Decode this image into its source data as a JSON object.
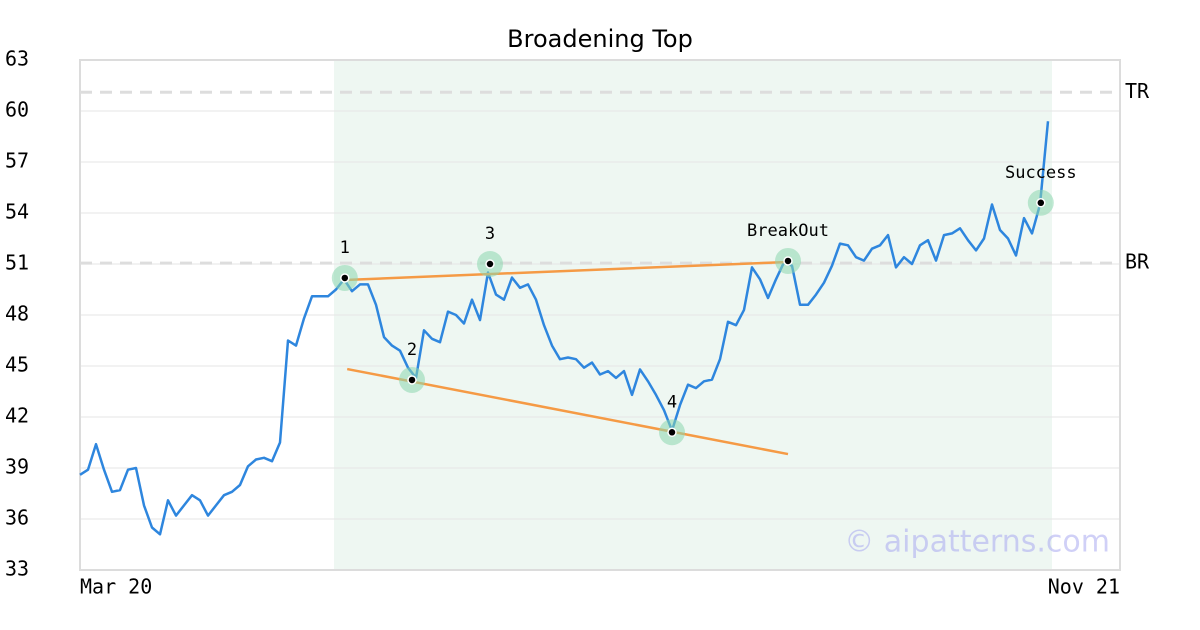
{
  "chart_data": {
    "type": "line",
    "title": "Broadening Top",
    "values": [
      38.6,
      38.9,
      40.4,
      38.9,
      37.6,
      37.7,
      38.9,
      39.0,
      36.8,
      35.5,
      35.1,
      37.1,
      36.2,
      36.8,
      37.4,
      37.1,
      36.2,
      36.8,
      37.4,
      37.6,
      38.0,
      39.1,
      39.5,
      39.6,
      39.4,
      40.5,
      46.5,
      46.2,
      47.8,
      49.1,
      49.1,
      49.1,
      49.5,
      50.1,
      49.4,
      49.8,
      49.8,
      48.6,
      46.7,
      46.2,
      45.9,
      44.9,
      44.3,
      47.1,
      46.6,
      46.4,
      48.2,
      48.0,
      47.5,
      48.9,
      47.7,
      50.5,
      49.2,
      48.9,
      50.2,
      49.6,
      49.8,
      48.9,
      47.4,
      46.2,
      45.4,
      45.5,
      45.4,
      44.9,
      45.2,
      44.5,
      44.7,
      44.3,
      44.7,
      43.3,
      44.8,
      44.1,
      43.3,
      42.4,
      41.2,
      42.7,
      43.9,
      43.7,
      44.1,
      44.2,
      45.4,
      47.6,
      47.4,
      48.3,
      50.8,
      50.1,
      49.0,
      50.1,
      51.1,
      50.9,
      48.6,
      48.6,
      49.2,
      49.9,
      50.9,
      52.2,
      52.1,
      51.4,
      51.2,
      51.9,
      52.1,
      52.7,
      50.8,
      51.4,
      51.0,
      52.1,
      52.4,
      51.2,
      52.7,
      52.8,
      53.1,
      52.4,
      51.8,
      52.5,
      54.5,
      53.0,
      52.5,
      51.5,
      53.7,
      52.8,
      54.5,
      59.4
    ],
    "color": "#2e86de",
    "xlim": [
      0,
      130
    ],
    "xticks": [
      {
        "value": 0,
        "label": "Mar 20"
      },
      {
        "value": 130,
        "label": "Nov 21"
      }
    ],
    "ylim": [
      33,
      63
    ],
    "yticks": [
      33,
      36,
      39,
      42,
      45,
      48,
      51,
      54,
      57,
      60,
      63
    ],
    "grid": true,
    "shade_x": [
      31.75,
      121.5
    ],
    "shade_color": "#eef7f2",
    "reference_lines": [
      {
        "label": "TR",
        "value": 61.1
      },
      {
        "label": "BR",
        "value": 51.05
      }
    ],
    "trend_lines": [
      {
        "x": [
          33.1,
          88.5
        ],
        "y": [
          50.06,
          51.12
        ],
        "color": "#f59a45"
      },
      {
        "x": [
          33.4,
          88.5
        ],
        "y": [
          44.82,
          39.82
        ],
        "color": "#f59a45"
      }
    ],
    "markers": [
      {
        "label": "1",
        "x": 33.1,
        "y": 50.18
      },
      {
        "label": "2",
        "x": 41.5,
        "y": 44.18
      },
      {
        "label": "3",
        "x": 51.25,
        "y": 51.0
      },
      {
        "label": "4",
        "x": 74,
        "y": 41.1
      },
      {
        "label": "BreakOut",
        "x": 88.5,
        "y": 51.18
      },
      {
        "label": "Success",
        "x": 120.1,
        "y": 54.6
      }
    ],
    "watermark": "© aipatterns.com"
  }
}
